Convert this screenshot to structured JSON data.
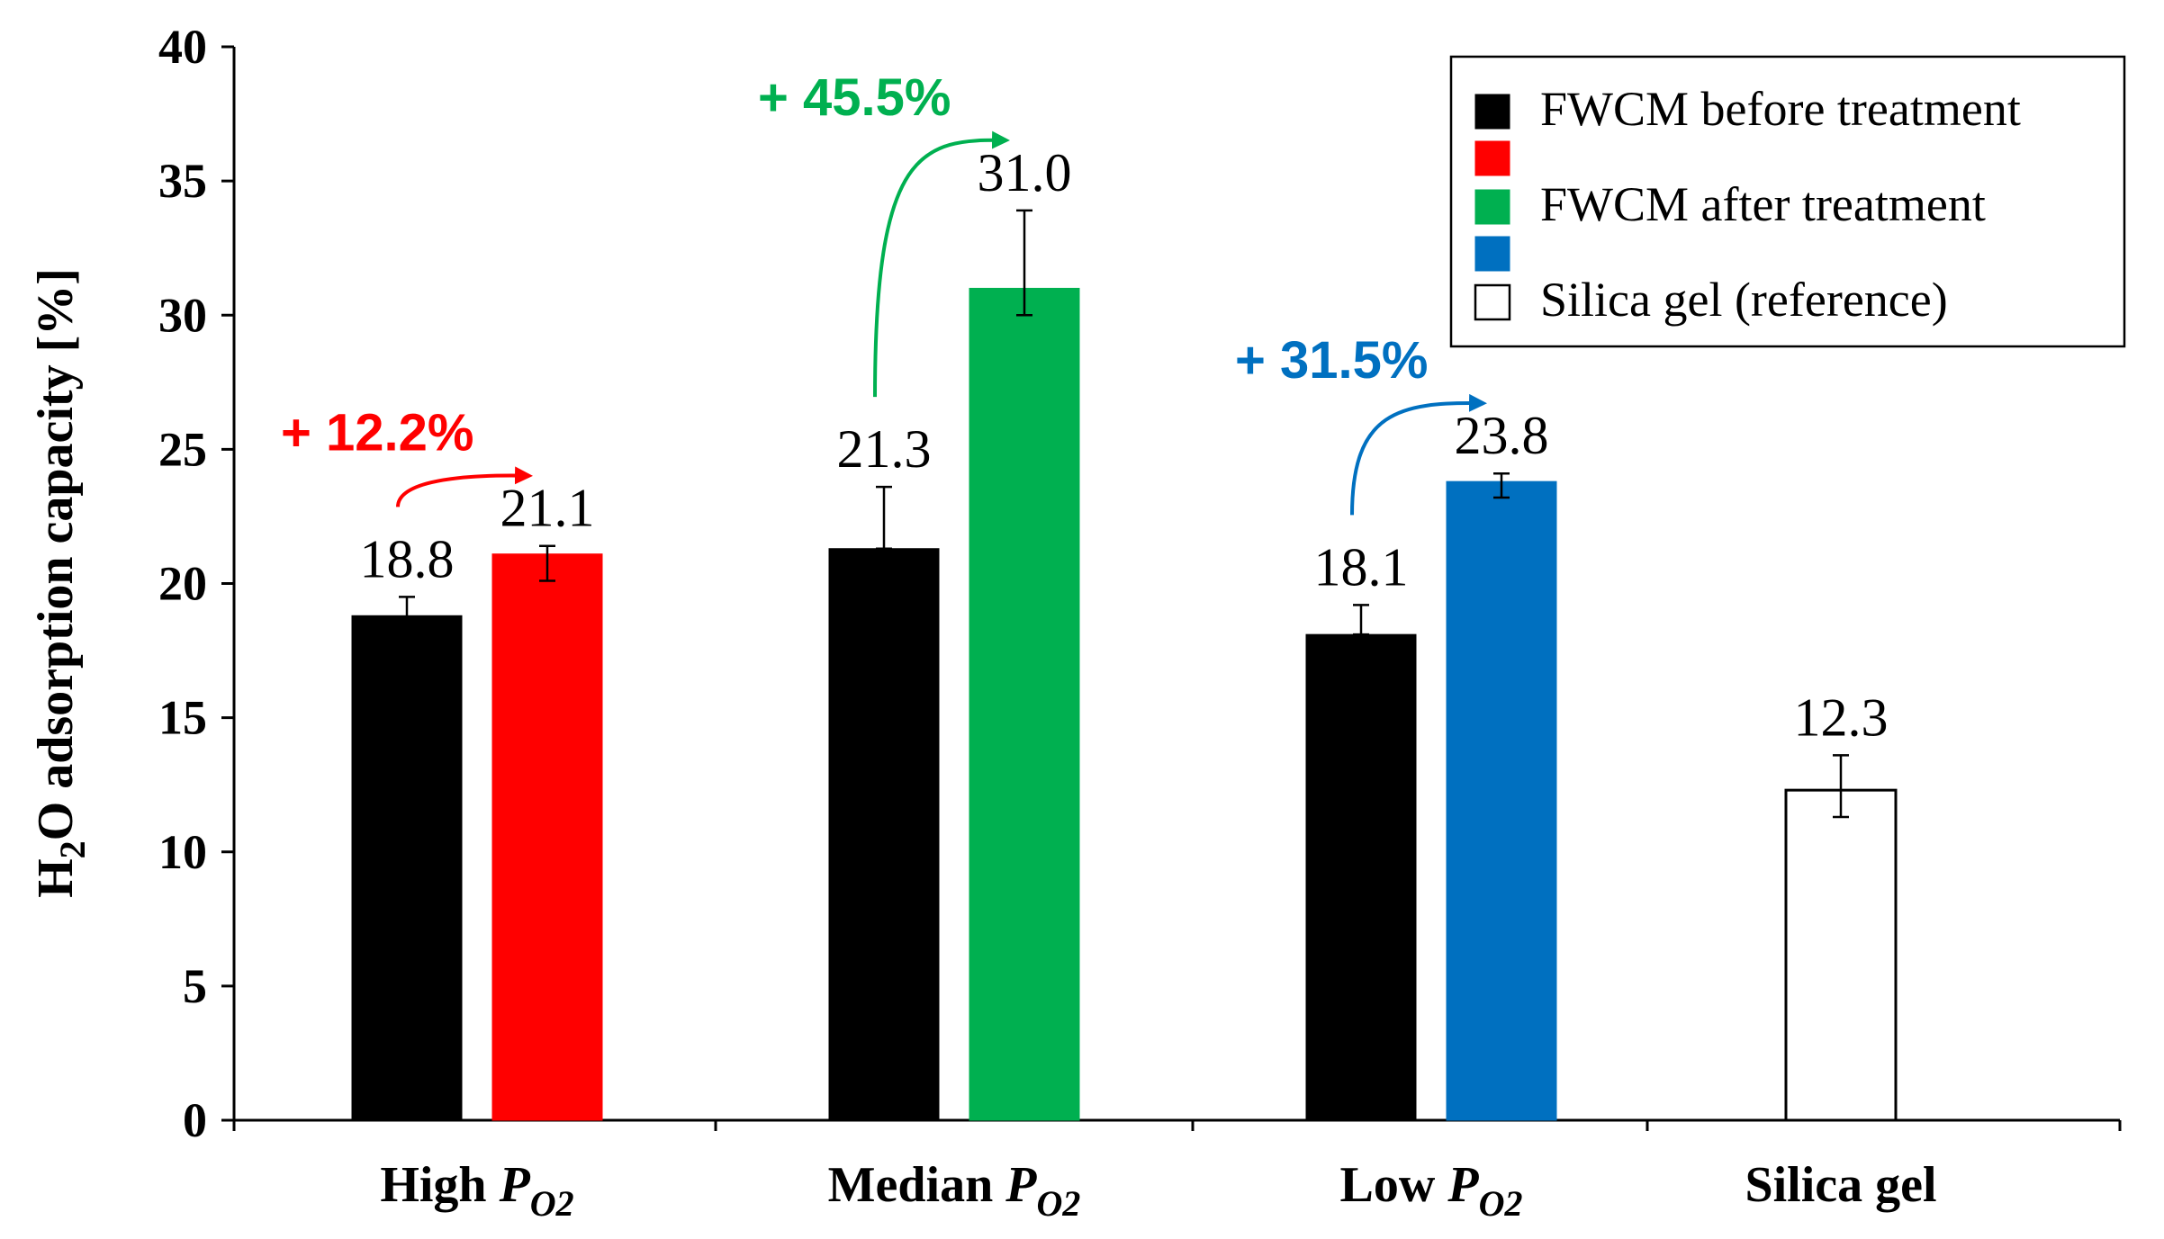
{
  "chart_data": {
    "type": "bar",
    "title": "",
    "xlabel": "",
    "ylabel": "H2O adsorption capacity [%]",
    "ylabel_parts": {
      "main": "H",
      "sub": "2",
      "rest": "O adsorption capacity [%]"
    },
    "ylim": [
      0,
      40
    ],
    "yticks": [
      0,
      5,
      10,
      15,
      20,
      25,
      30,
      35,
      40
    ],
    "grid": false,
    "categories": [
      {
        "main": "High ",
        "italic": "P",
        "sub": "O2"
      },
      {
        "main": "Median ",
        "italic": "P",
        "sub": "O2"
      },
      {
        "main": "Low ",
        "italic": "P",
        "sub": "O2"
      },
      {
        "main": "Silica gel",
        "italic": "",
        "sub": ""
      }
    ],
    "bars": [
      {
        "category": 0,
        "slot": 0,
        "series": "FWCM before treatment",
        "value": 18.8,
        "label": "18.8",
        "err_low": 0.4,
        "err_high": 0.7,
        "color": "#000000"
      },
      {
        "category": 0,
        "slot": 1,
        "series": "FWCM after treatment",
        "value": 21.1,
        "label": "21.1",
        "err_low": 1.0,
        "err_high": 0.3,
        "color": "#ff0000"
      },
      {
        "category": 1,
        "slot": 0,
        "series": "FWCM before treatment",
        "value": 21.3,
        "label": "21.3",
        "err_low": 0.0,
        "err_high": 2.3,
        "color": "#000000"
      },
      {
        "category": 1,
        "slot": 1,
        "series": "FWCM after treatment",
        "value": 31.0,
        "label": "31.0",
        "err_low": 1.0,
        "err_high": 2.9,
        "color": "#00b050"
      },
      {
        "category": 2,
        "slot": 0,
        "series": "FWCM before treatment",
        "value": 18.1,
        "label": "18.1",
        "err_low": 0.0,
        "err_high": 1.1,
        "color": "#000000"
      },
      {
        "category": 2,
        "slot": 1,
        "series": "FWCM after treatment",
        "value": 23.8,
        "label": "23.8",
        "err_low": 0.6,
        "err_high": 0.3,
        "color": "#0070c0"
      },
      {
        "category": 3,
        "slot": 2,
        "series": "Silica gel (reference)",
        "value": 12.3,
        "label": "12.3",
        "err_low": 1.0,
        "err_high": 1.3,
        "color": "#ffffff"
      }
    ],
    "annotations": [
      {
        "text": "+ 12.2%",
        "color": "#ff0000",
        "category": 0
      },
      {
        "text": "+ 45.5%",
        "color": "#00b050",
        "category": 1
      },
      {
        "text": "+ 31.5%",
        "color": "#0070c0",
        "category": 2
      }
    ],
    "legend": {
      "position": "top-right",
      "entries": [
        {
          "label": "FWCM before treatment",
          "swatches": [
            "#000000",
            "#ff0000"
          ]
        },
        {
          "label": "FWCM after treatment",
          "swatches": [
            "#00b050",
            "#0070c0"
          ]
        },
        {
          "label": "Silica gel (reference)",
          "swatches": [
            "#ffffff"
          ]
        }
      ]
    }
  }
}
